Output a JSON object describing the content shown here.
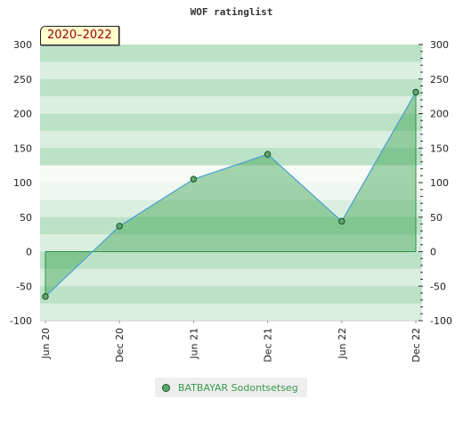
{
  "chart_data": {
    "type": "area",
    "title": "WOF ratinglist",
    "badge": "2020–2022",
    "x": [
      "Jun 20",
      "Dec 20",
      "Jun 21",
      "Dec 21",
      "Jun 22",
      "Dec 22"
    ],
    "xlabels": [
      "Jun 20",
      "Dec 20",
      "Jun 21",
      "Dec 21",
      "Jun 22",
      "Dec 22"
    ],
    "series": [
      {
        "name": "BATBAYAR Sodontsetseg",
        "values": [
          -65,
          37,
          105,
          141,
          44,
          231
        ]
      }
    ],
    "ylim": [
      -100,
      300
    ],
    "yticks": [
      -100,
      -50,
      0,
      50,
      100,
      150,
      200,
      250,
      300
    ],
    "ytick_labels": [
      "-100",
      "-50",
      "0",
      "50",
      "100",
      "150",
      "200",
      "250",
      "300"
    ],
    "grid": true,
    "legend": "bottom-center",
    "colors": {
      "line": "#4a9fd6",
      "fill": "#3ca550",
      "marker": "#5aa86a",
      "marker_edge": "#1d4d27",
      "band_dark": "#b5dfc1",
      "band_light": "#f0f7f1"
    }
  }
}
